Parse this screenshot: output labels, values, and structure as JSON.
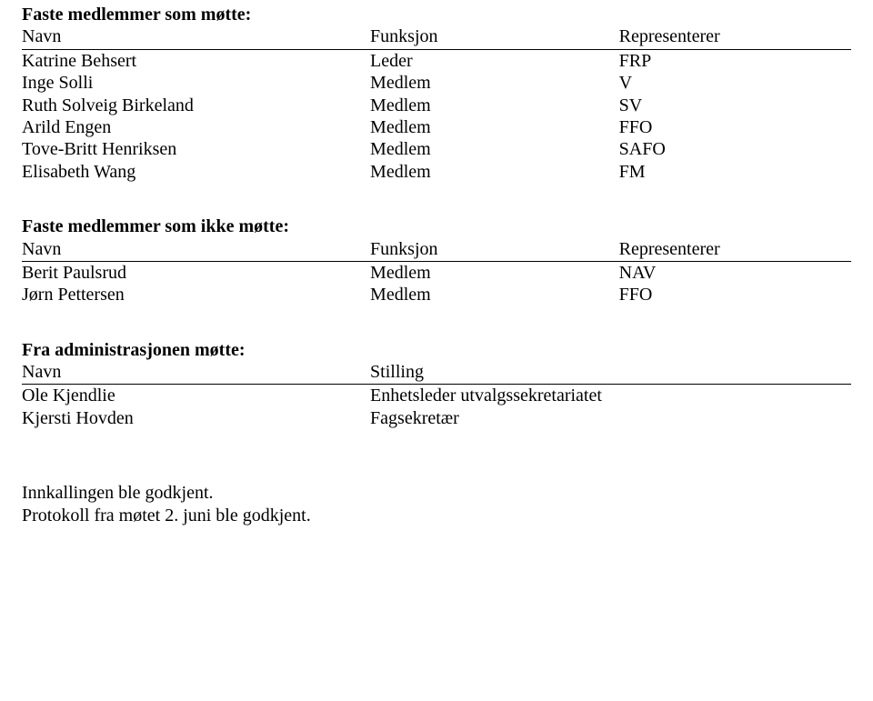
{
  "attendees": {
    "title": "Faste medlemmer som møtte:",
    "headers": {
      "navn": "Navn",
      "funksjon": "Funksjon",
      "rep": "Representerer"
    },
    "rows": [
      {
        "navn": "Katrine Behsert",
        "funksjon": "Leder",
        "rep": "FRP"
      },
      {
        "navn": "Inge Solli",
        "funksjon": "Medlem",
        "rep": "V"
      },
      {
        "navn": "Ruth Solveig Birkeland",
        "funksjon": "Medlem",
        "rep": "SV"
      },
      {
        "navn": "Arild Engen",
        "funksjon": "Medlem",
        "rep": "FFO"
      },
      {
        "navn": "Tove-Britt Henriksen",
        "funksjon": "Medlem",
        "rep": "SAFO"
      },
      {
        "navn": "Elisabeth Wang",
        "funksjon": "Medlem",
        "rep": "FM"
      }
    ]
  },
  "absent": {
    "title": "Faste medlemmer som ikke møtte:",
    "headers": {
      "navn": "Navn",
      "funksjon": "Funksjon",
      "rep": "Representerer"
    },
    "rows": [
      {
        "navn": "Berit Paulsrud",
        "funksjon": "Medlem",
        "rep": "NAV"
      },
      {
        "navn": "Jørn Pettersen",
        "funksjon": "Medlem",
        "rep": "FFO"
      }
    ]
  },
  "admin": {
    "title": "Fra administrasjonen møtte:",
    "headers": {
      "navn": "Navn",
      "stilling": "Stilling"
    },
    "rows": [
      {
        "navn": "Ole Kjendlie",
        "stilling": "Enhetsleder utvalgssekretariatet"
      },
      {
        "navn": "Kjersti Hovden",
        "stilling": "Fagsekretær"
      }
    ]
  },
  "closing": {
    "line1": "Innkallingen ble godkjent.",
    "line2": "Protokoll fra møtet 2. juni ble godkjent."
  }
}
